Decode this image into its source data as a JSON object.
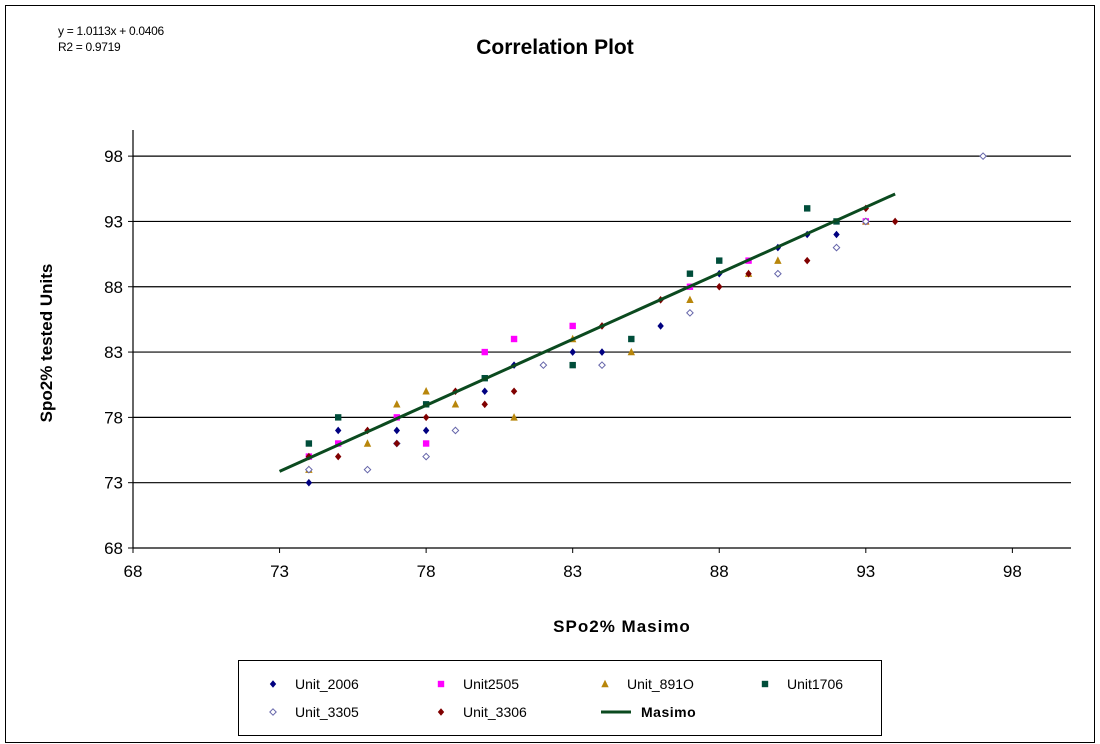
{
  "equation": {
    "line1": "y = 1.0113x + 0.0406",
    "line2": "R2 = 0.9719"
  },
  "chart_data": {
    "type": "scatter",
    "title": "Correlation Plot",
    "xlabel": "SPo2% Masimo",
    "ylabel": "Spo2% tested Units",
    "xlim": [
      68,
      100
    ],
    "ylim": [
      68,
      100
    ],
    "xticks": [
      68,
      73,
      78,
      83,
      88,
      93,
      98
    ],
    "yticks": [
      68,
      73,
      78,
      83,
      88,
      93,
      98
    ],
    "grid": "horizontal",
    "legend_position": "bottom",
    "trendline": {
      "name": "Masimo",
      "slope": 1.0113,
      "intercept": 0.0406,
      "x_range": [
        73,
        94
      ],
      "color": "#0b4a1f"
    },
    "series": [
      {
        "name": "Unit_2006",
        "marker": "diamond",
        "color": "#000080",
        "points": [
          [
            74,
            73
          ],
          [
            75,
            77
          ],
          [
            77,
            77
          ],
          [
            78,
            77
          ],
          [
            80,
            80
          ],
          [
            81,
            82
          ],
          [
            83,
            83
          ],
          [
            84,
            83
          ],
          [
            86,
            85
          ],
          [
            88,
            89
          ],
          [
            90,
            91
          ],
          [
            91,
            92
          ],
          [
            92,
            92
          ]
        ]
      },
      {
        "name": "Unit2505",
        "marker": "square",
        "color": "#ff00ff",
        "points": [
          [
            74,
            75
          ],
          [
            75,
            76
          ],
          [
            77,
            78
          ],
          [
            78,
            76
          ],
          [
            80,
            83
          ],
          [
            81,
            84
          ],
          [
            83,
            85
          ],
          [
            87,
            88
          ],
          [
            89,
            90
          ],
          [
            93,
            93
          ]
        ]
      },
      {
        "name": "Unit_891O",
        "marker": "triangle",
        "color": "#b8860b",
        "points": [
          [
            74,
            74
          ],
          [
            76,
            76
          ],
          [
            77,
            79
          ],
          [
            78,
            80
          ],
          [
            79,
            79
          ],
          [
            81,
            78
          ],
          [
            83,
            84
          ],
          [
            85,
            83
          ],
          [
            87,
            87
          ],
          [
            89,
            89
          ],
          [
            90,
            90
          ],
          [
            93,
            93
          ]
        ]
      },
      {
        "name": "Unit1706",
        "marker": "square",
        "color": "#004d3a",
        "points": [
          [
            74,
            76
          ],
          [
            75,
            78
          ],
          [
            78,
            79
          ],
          [
            80,
            81
          ],
          [
            83,
            82
          ],
          [
            85,
            84
          ],
          [
            87,
            89
          ],
          [
            88,
            90
          ],
          [
            91,
            94
          ],
          [
            92,
            93
          ]
        ]
      },
      {
        "name": "Unit_3305",
        "marker": "diamond-open",
        "color": "#6666aa",
        "points": [
          [
            74,
            74
          ],
          [
            76,
            74
          ],
          [
            77,
            76
          ],
          [
            78,
            75
          ],
          [
            79,
            77
          ],
          [
            82,
            82
          ],
          [
            84,
            82
          ],
          [
            87,
            86
          ],
          [
            90,
            89
          ],
          [
            92,
            91
          ],
          [
            93,
            93
          ],
          [
            97,
            98
          ]
        ]
      },
      {
        "name": "Unit_3306",
        "marker": "diamond",
        "color": "#800000",
        "points": [
          [
            74,
            75
          ],
          [
            75,
            75
          ],
          [
            76,
            77
          ],
          [
            77,
            76
          ],
          [
            78,
            78
          ],
          [
            79,
            80
          ],
          [
            80,
            79
          ],
          [
            81,
            80
          ],
          [
            84,
            85
          ],
          [
            86,
            87
          ],
          [
            88,
            88
          ],
          [
            89,
            89
          ],
          [
            91,
            90
          ],
          [
            93,
            94
          ],
          [
            94,
            93
          ]
        ]
      }
    ]
  }
}
